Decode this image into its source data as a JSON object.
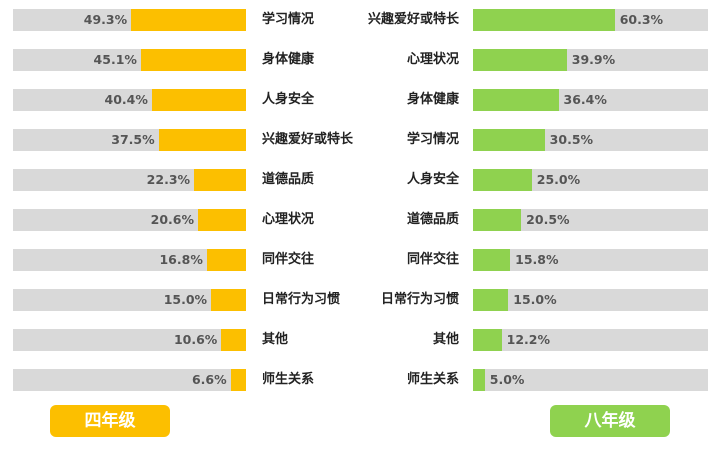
{
  "colors": {
    "left": "#fcbf00",
    "right": "#8fd24f",
    "track": "#d9d9d9"
  },
  "chart_data": [
    {
      "type": "bar",
      "orientation": "horizontal",
      "series": [
        {
          "name": "四年级",
          "categories": [
            "学习情况",
            "身体健康",
            "人身安全",
            "兴趣爱好或特长",
            "道德品质",
            "心理状况",
            "同伴交往",
            "日常行为习惯",
            "其他",
            "师生关系"
          ],
          "values": [
            49.3,
            45.1,
            40.4,
            37.5,
            22.3,
            20.6,
            16.8,
            15.0,
            10.6,
            6.6
          ],
          "labels": [
            "49.3%",
            "45.1%",
            "40.4%",
            "37.5%",
            "22.3%",
            "20.6%",
            "16.8%",
            "15.0%",
            "10.6%",
            "6.6%"
          ]
        }
      ],
      "xlim": [
        0,
        100
      ]
    },
    {
      "type": "bar",
      "orientation": "horizontal",
      "series": [
        {
          "name": "八年级",
          "categories": [
            "兴趣爱好或特长",
            "心理状况",
            "身体健康",
            "学习情况",
            "人身安全",
            "道德品质",
            "同伴交往",
            "日常行为习惯",
            "其他",
            "师生关系"
          ],
          "values": [
            60.3,
            39.9,
            36.4,
            30.5,
            25.0,
            20.5,
            15.8,
            15.0,
            12.2,
            5.0
          ],
          "labels": [
            "60.3%",
            "39.9%",
            "36.4%",
            "30.5%",
            "25.0%",
            "20.5%",
            "15.8%",
            "15.0%",
            "12.2%",
            "5.0%"
          ]
        }
      ],
      "xlim": [
        0,
        100
      ]
    }
  ]
}
